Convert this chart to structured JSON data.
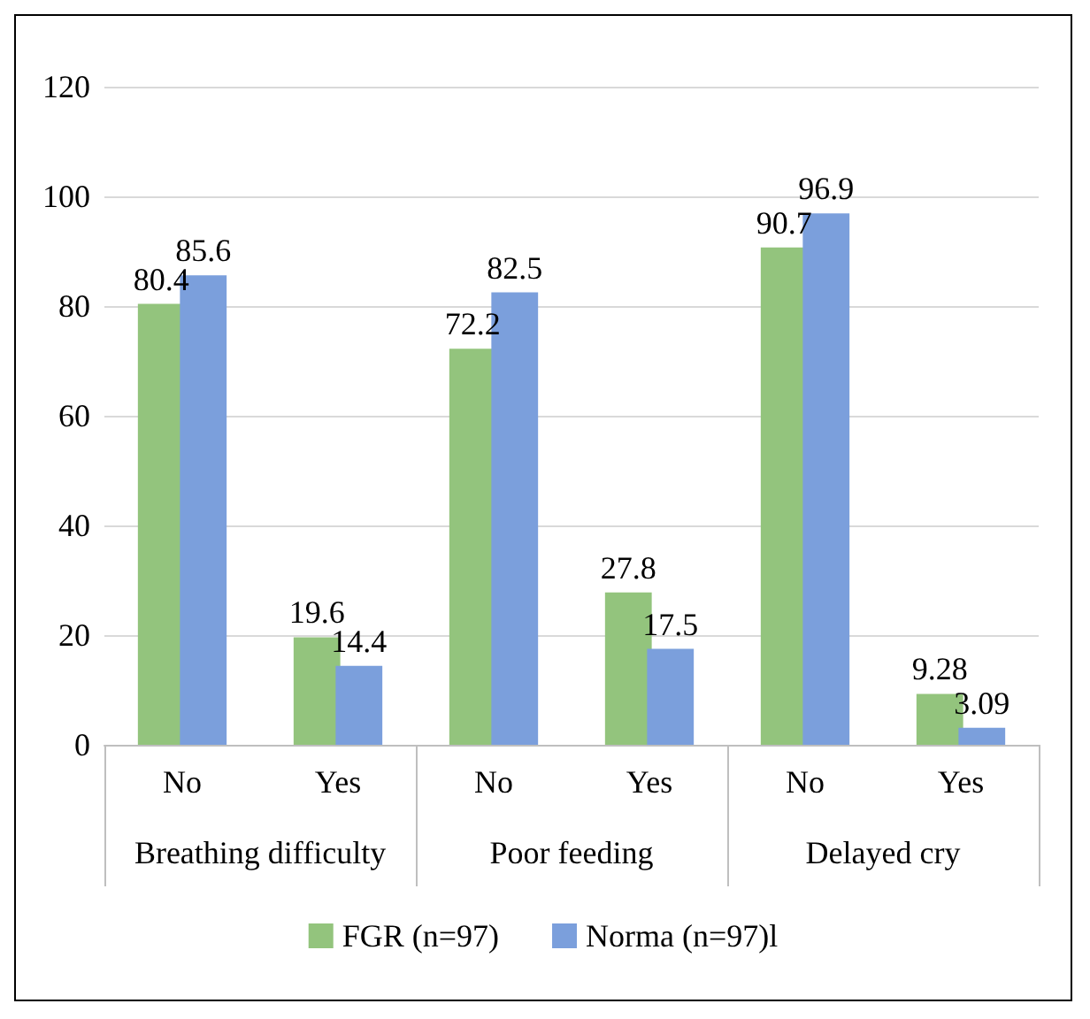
{
  "chart_data": {
    "type": "bar",
    "categories": [
      "No",
      "Yes",
      "No",
      "Yes",
      "No",
      "Yes"
    ],
    "annotations": [
      "Breathing difficulty",
      "Poor feeding",
      "Delayed cry"
    ],
    "series": [
      {
        "name": "FGR (n=97)",
        "color": "#93c47d",
        "values": [
          80.4,
          19.6,
          72.2,
          27.8,
          90.7,
          9.28
        ]
      },
      {
        "name": "Norma (n=97)l",
        "color": "#7b9fdc",
        "values": [
          85.6,
          14.4,
          82.5,
          17.5,
          96.9,
          3.09
        ]
      }
    ],
    "ylim": [
      0,
      120
    ],
    "yticks": [
      0,
      20,
      40,
      60,
      80,
      100,
      120
    ],
    "grid": "y",
    "legend": "bottom",
    "data_labels": true
  }
}
